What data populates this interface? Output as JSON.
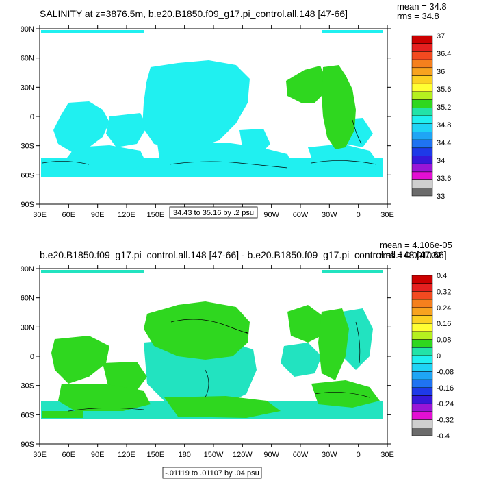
{
  "panels": [
    {
      "title": "SALINITY at z=3876.5m, b.e20.B1850.f09_g17.pi_control.all.148 [47-66]",
      "stats_mean": "mean = 34.8",
      "stats_rms": "rms = 34.8",
      "contour_info": "34.43 to 35.16 by .2 psu",
      "colorbar_labels": [
        "37",
        "36.4",
        "36",
        "35.6",
        "35.2",
        "34.8",
        "34.4",
        "34",
        "33.6",
        "33"
      ]
    },
    {
      "title": "b.e20.B1850.f09_g17.pi_control.all.148 [47-66] - b.e20.B1850.f09_g17.pi_control.all.148 [47-66]",
      "stats_mean": "mean = 4.106e-05",
      "stats_rms": "rms = 0.001032",
      "contour_info": "-.01119 to .01107 by .04 psu",
      "colorbar_labels": [
        "0.4",
        "0.32",
        "0.24",
        "0.16",
        "0.08",
        "0",
        "-0.08",
        "-0.16",
        "-0.24",
        "-0.32",
        "-0.4"
      ]
    }
  ],
  "axes": {
    "lat_labels": [
      "90N",
      "60N",
      "30N",
      "0",
      "30S",
      "60S",
      "90S"
    ],
    "lon_labels": [
      "30E",
      "60E",
      "90E",
      "120E",
      "150E",
      "180",
      "150W",
      "120W",
      "90W",
      "60W",
      "30W",
      "0",
      "30E"
    ]
  },
  "colors": {
    "colorbar": [
      "#cc0000",
      "#e52020",
      "#f24a20",
      "#f5801d",
      "#f7a31f",
      "#fbd123",
      "#ffff33",
      "#b5f01f",
      "#2fd71f",
      "#22e3a8",
      "#20f0f0",
      "#1fd3f5",
      "#1fa5f5",
      "#1f73f2",
      "#1e3ae8",
      "#3618d9",
      "#9a16d6",
      "#e40fd3",
      "#cfcfcf",
      "#6b6b6b"
    ],
    "field_main": "#20f0f0",
    "field_positive": "#2fd71f",
    "field_negative": "#22e3c0"
  }
}
